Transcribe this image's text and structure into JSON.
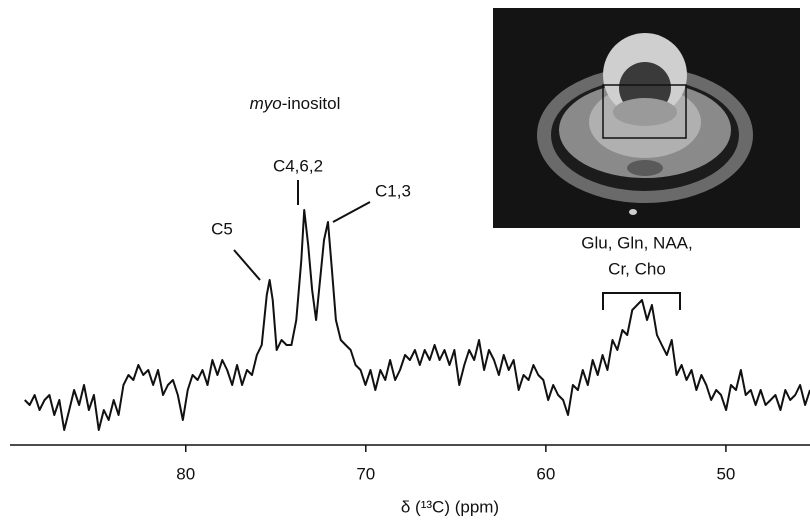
{
  "chart_data": {
    "type": "line",
    "color": "#111111",
    "xlabel": "δ (¹³C) (ppm)",
    "annotations": {
      "myo": {
        "italic": "myo",
        "text": "-inositol"
      },
      "c462": "C4,6,2",
      "c13": "C1,3",
      "c5": "C5",
      "glu": [
        "Glu, Gln, NAA,",
        "Cr, Cho"
      ]
    },
    "xlim": [
      89.76,
      45.33
    ],
    "xticks": [
      80,
      70,
      60,
      50
    ],
    "ylim": [
      0,
      100
    ],
    "x": [
      88.94,
      88.67,
      88.39,
      88.12,
      87.84,
      87.57,
      87.3,
      87.02,
      86.75,
      86.47,
      86.2,
      85.92,
      85.65,
      85.38,
      85.1,
      84.83,
      84.55,
      84.28,
      84.0,
      83.73,
      83.46,
      83.18,
      82.91,
      82.63,
      82.36,
      82.08,
      81.81,
      81.54,
      81.26,
      80.99,
      80.71,
      80.44,
      80.16,
      79.89,
      79.62,
      79.34,
      79.07,
      78.79,
      78.52,
      78.24,
      77.97,
      77.7,
      77.42,
      77.15,
      76.87,
      76.6,
      76.32,
      76.05,
      75.78,
      75.5,
      75.34,
      75.17,
      74.95,
      74.68,
      74.4,
      74.13,
      73.86,
      73.58,
      73.42,
      73.2,
      72.98,
      72.76,
      72.54,
      72.32,
      72.1,
      71.88,
      71.66,
      71.39,
      71.12,
      70.84,
      70.57,
      70.29,
      70.02,
      69.74,
      69.47,
      69.19,
      68.92,
      68.65,
      68.37,
      68.1,
      67.82,
      67.55,
      67.27,
      67.0,
      66.73,
      66.45,
      66.18,
      65.9,
      65.63,
      65.35,
      65.08,
      64.81,
      64.53,
      64.26,
      63.98,
      63.71,
      63.43,
      63.16,
      62.88,
      62.61,
      62.34,
      62.06,
      61.79,
      61.51,
      61.24,
      60.96,
      60.69,
      60.42,
      60.14,
      59.87,
      59.59,
      59.32,
      59.04,
      58.77,
      58.5,
      58.22,
      57.95,
      57.67,
      57.4,
      57.12,
      56.85,
      56.58,
      56.3,
      56.03,
      55.75,
      55.48,
      55.2,
      54.93,
      54.66,
      54.38,
      54.11,
      53.83,
      53.56,
      53.28,
      53.01,
      52.74,
      52.46,
      52.19,
      51.91,
      51.64,
      51.36,
      51.09,
      50.82,
      50.54,
      50.27,
      49.99,
      49.72,
      49.44,
      49.17,
      48.9,
      48.62,
      48.35,
      48.07,
      47.8,
      47.52,
      47.25,
      46.97,
      46.7,
      46.43,
      46.15,
      45.88,
      45.6,
      45.33
    ],
    "values": [
      18,
      16,
      20,
      14,
      18,
      20,
      12,
      18,
      6,
      14,
      22,
      16,
      24,
      14,
      20,
      6,
      14,
      10,
      18,
      12,
      24,
      28,
      26,
      32,
      28,
      30,
      24,
      30,
      20,
      24,
      26,
      20,
      10,
      22,
      28,
      26,
      30,
      24,
      34,
      28,
      34,
      30,
      24,
      32,
      24,
      30,
      28,
      36,
      40,
      60,
      66,
      58,
      38,
      42,
      40,
      40,
      50,
      74,
      94,
      80,
      62,
      50,
      66,
      82,
      89.2,
      70,
      50,
      42,
      40,
      38,
      32,
      30,
      24,
      30,
      22,
      30,
      26,
      34,
      26,
      30,
      36,
      34,
      38,
      32,
      38,
      34,
      40,
      34,
      38,
      32,
      38,
      24,
      32,
      38,
      34,
      42,
      30,
      38,
      34,
      28,
      36,
      30,
      34,
      22,
      28,
      26,
      32,
      28,
      26,
      18,
      24,
      20,
      18,
      12,
      24,
      22,
      30,
      24,
      34,
      28,
      36,
      30,
      42,
      38,
      46,
      44,
      54,
      56,
      58,
      50,
      56,
      44,
      40,
      36,
      42,
      28,
      32,
      26,
      30,
      22,
      28,
      24,
      18,
      22,
      20,
      14,
      24,
      22,
      30,
      20,
      22,
      16,
      22,
      16,
      18,
      20,
      14,
      22,
      18,
      20,
      24,
      16,
      22
    ]
  }
}
